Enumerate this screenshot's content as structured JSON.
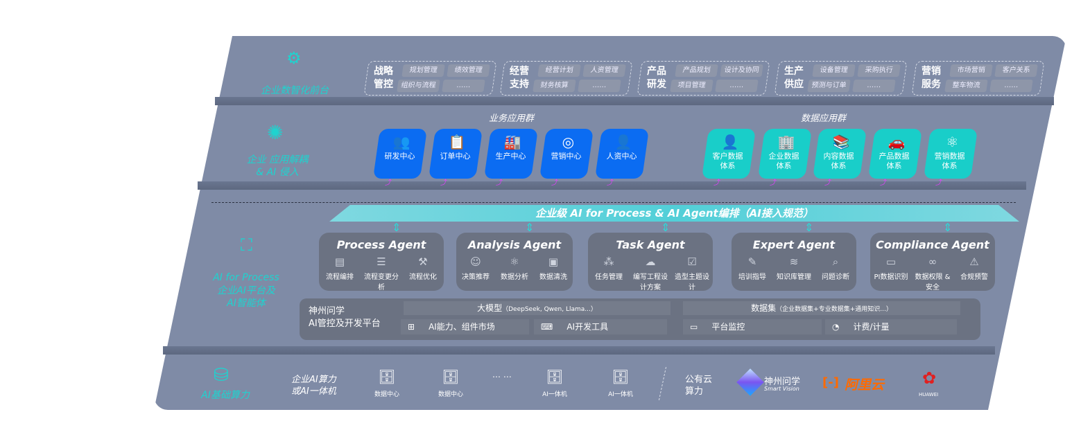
{
  "front_layer": {
    "label": "企业数智化前台",
    "icon": "brain-icon",
    "groups": [
      {
        "title": "战略管控",
        "items": [
          "规划管理",
          "绩效管理",
          "组织与流程",
          "……"
        ]
      },
      {
        "title": "经营支持",
        "items": [
          "经营计划",
          "人资管理",
          "财务核算",
          "……"
        ]
      },
      {
        "title": "产品研发",
        "items": [
          "产品规划",
          "设计及协同",
          "项目管理",
          "……"
        ]
      },
      {
        "title": "生产供应",
        "items": [
          "设备管理",
          "采购执行",
          "预测与订单",
          "……"
        ]
      },
      {
        "title": "营销服务",
        "items": [
          "市场营销",
          "客户关系",
          "整车物流",
          "……"
        ]
      }
    ]
  },
  "app_layer": {
    "label": "企业 应用解耦\n& AI 侵入",
    "icon": "molecule-icon",
    "business_title": "业务应用群",
    "business_apps": [
      {
        "label": "研发中心",
        "icon": "users-icon"
      },
      {
        "label": "订单中心",
        "icon": "clipboard-icon"
      },
      {
        "label": "生产中心",
        "icon": "factory-icon"
      },
      {
        "label": "营销中心",
        "icon": "target-icon"
      },
      {
        "label": "人资中心",
        "icon": "person-icon"
      }
    ],
    "data_title": "数据应用群",
    "data_apps": [
      {
        "label": "客户数据体系",
        "icon": "user-icon"
      },
      {
        "label": "企业数据体系",
        "icon": "building-icon"
      },
      {
        "label": "内容数据体系",
        "icon": "books-icon"
      },
      {
        "label": "产品数据体系",
        "icon": "car-icon"
      },
      {
        "label": "营销数据体系",
        "icon": "atom-icon"
      }
    ],
    "colors": {
      "business": "#0b6cf2",
      "data": "#19cec9",
      "connector": "#e040fb"
    }
  },
  "ai_layer": {
    "label_en": "AI for Process",
    "label_cn": "企业AI平台及\nAI智能体",
    "icon": "face-scan-icon",
    "banner": "企业级 AI for Process & AI Agent编排（AI接入规范）",
    "agents": [
      {
        "title": "Process Agent",
        "items": [
          {
            "label": "流程编排",
            "icon": "chart-icon"
          },
          {
            "label": "流程变更分析",
            "icon": "list-icon"
          },
          {
            "label": "流程优化",
            "icon": "tools-icon"
          }
        ]
      },
      {
        "title": "Analysis Agent",
        "items": [
          {
            "label": "决策推荐",
            "icon": "head-icon"
          },
          {
            "label": "数据分析",
            "icon": "atom-icon"
          },
          {
            "label": "数据清洗",
            "icon": "document-icon"
          }
        ]
      },
      {
        "title": "Task Agent",
        "items": [
          {
            "label": "任务管理",
            "icon": "network-icon"
          },
          {
            "label": "编写工程设计方案",
            "icon": "cloud-icon"
          },
          {
            "label": "造型主题设计",
            "icon": "checklist-icon"
          }
        ]
      },
      {
        "title": "Expert Agent",
        "items": [
          {
            "label": "培训指导",
            "icon": "teacher-icon"
          },
          {
            "label": "知识库管理",
            "icon": "layers-icon"
          },
          {
            "label": "问题诊断",
            "icon": "diagnose-icon"
          }
        ]
      },
      {
        "title": "Compliance Agent",
        "items": [
          {
            "label": "PI数据识别",
            "icon": "id-card-icon"
          },
          {
            "label": "数据权限 & 安全",
            "icon": "link-icon"
          },
          {
            "label": "合规预警",
            "icon": "alert-icon"
          }
        ]
      }
    ],
    "platform": {
      "title": "神州问学\nAI管控及开发平台",
      "model_title": "大模型",
      "model_note": "（DeepSeek, Qwen, Llama...）",
      "dataset_title": "数据集",
      "dataset_note": "（企业数据集+专业数据集+通用知识...）",
      "cells": [
        {
          "label": "AI能力、组件市场",
          "icon": "market-icon"
        },
        {
          "label": "AI开发工具",
          "icon": "dev-tool-icon"
        },
        {
          "label": "平台监控",
          "icon": "monitor-icon"
        },
        {
          "label": "计费/计量",
          "icon": "gauge-icon"
        }
      ]
    }
  },
  "infra_layer": {
    "label": "AI基础算力",
    "icon": "database-icon",
    "enterprise_title": "企业AI算力\n或AI一体机",
    "servers": [
      "数据中心",
      "数据中心",
      "AI一体机",
      "AI一体机"
    ],
    "ellipsis": "… …",
    "public_title": "公有云\n算力",
    "providers": [
      {
        "name": "神州问学",
        "sub": "Smart Vision",
        "color": "#ffffff"
      },
      {
        "name": "阿里云",
        "color": "#ff6a00"
      },
      {
        "name": "HUAWEI",
        "color": "#e02020"
      }
    ]
  }
}
